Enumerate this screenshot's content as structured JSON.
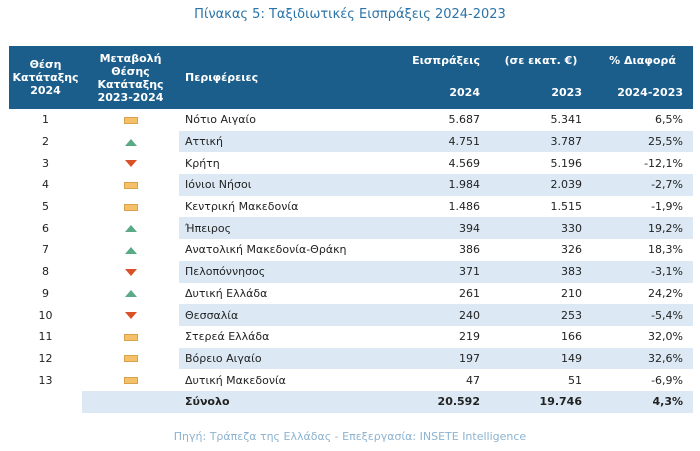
{
  "title": "Πίνακας 5: Ταξιδιωτικές Εισπράξεις 2024-2023",
  "headers": {
    "rank": [
      "Θέση",
      "Κατάταξης",
      "2024"
    ],
    "change": [
      "Μεταβολή",
      "Θέσης",
      "Κατάταξης",
      "2023-2024"
    ],
    "region": "Περιφέρειες",
    "receipts": "Εισπράξεις",
    "unit": "(σε εκατ. €)",
    "diff": "% Διαφορά",
    "year_2024": "2024",
    "year_2023": "2023",
    "diff_years": "2024-2023"
  },
  "rows": [
    {
      "rank": "1",
      "change": "flat",
      "region": "Νότιο Αιγαίο",
      "v2024": "5.687",
      "v2023": "5.341",
      "diff": "6,5%"
    },
    {
      "rank": "2",
      "change": "up",
      "region": "Αττική",
      "v2024": "4.751",
      "v2023": "3.787",
      "diff": "25,5%"
    },
    {
      "rank": "3",
      "change": "down",
      "region": "Κρήτη",
      "v2024": "4.569",
      "v2023": "5.196",
      "diff": "-12,1%"
    },
    {
      "rank": "4",
      "change": "flat",
      "region": "Ιόνιοι Νήσοι",
      "v2024": "1.984",
      "v2023": "2.039",
      "diff": "-2,7%"
    },
    {
      "rank": "5",
      "change": "flat",
      "region": "Κεντρική Μακεδονία",
      "v2024": "1.486",
      "v2023": "1.515",
      "diff": "-1,9%"
    },
    {
      "rank": "6",
      "change": "up",
      "region": "Ήπειρος",
      "v2024": "394",
      "v2023": "330",
      "diff": "19,2%"
    },
    {
      "rank": "7",
      "change": "up",
      "region": "Ανατολική Μακεδονία-Θράκη",
      "v2024": "386",
      "v2023": "326",
      "diff": "18,3%"
    },
    {
      "rank": "8",
      "change": "down",
      "region": "Πελοπόννησος",
      "v2024": "371",
      "v2023": "383",
      "diff": "-3,1%"
    },
    {
      "rank": "9",
      "change": "up",
      "region": "Δυτική Ελλάδα",
      "v2024": "261",
      "v2023": "210",
      "diff": "24,2%"
    },
    {
      "rank": "10",
      "change": "down",
      "region": "Θεσσαλία",
      "v2024": "240",
      "v2023": "253",
      "diff": "-5,4%"
    },
    {
      "rank": "11",
      "change": "flat",
      "region": "Στερεά Ελλάδα",
      "v2024": "219",
      "v2023": "166",
      "diff": "32,0%"
    },
    {
      "rank": "12",
      "change": "flat",
      "region": "Βόρειο Αιγαίο",
      "v2024": "197",
      "v2023": "149",
      "diff": "32,6%"
    },
    {
      "rank": "13",
      "change": "flat",
      "region": "Δυτική Μακεδονία",
      "v2024": "47",
      "v2023": "51",
      "diff": "-6,9%"
    }
  ],
  "total": {
    "label": "Σύνολο",
    "v2024": "20.592",
    "v2023": "19.746",
    "diff": "4,3%"
  },
  "source": "Πηγή: Τράπεζα της Ελλάδας - Επεξεργασία: INSETE Intelligence",
  "colors": {
    "header": "#1b5e8c",
    "stripe": "#dce9f4",
    "up": "#5aa987",
    "down": "#d9502a",
    "flat": "#f5c06a",
    "title": "#2a74a8"
  }
}
